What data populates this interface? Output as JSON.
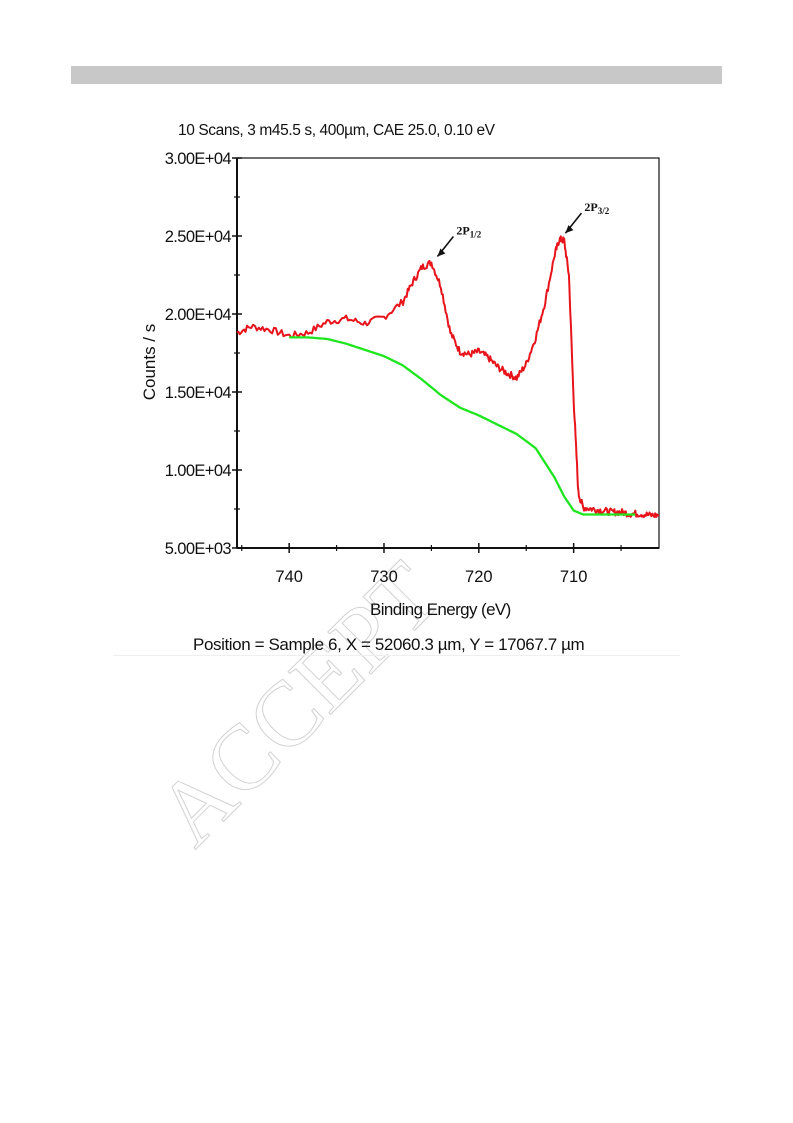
{
  "chart_data": {
    "type": "line",
    "title": "10 Scans,  3 m45.5 s,  400µm,  CAE 25.0,  0.10 eV",
    "xlabel": "Binding Energy (eV)",
    "ylabel": "Counts / s",
    "xlim": [
      745.5,
      701
    ],
    "ylim": [
      5000,
      30000
    ],
    "x_ticks": [
      740,
      730,
      720,
      710
    ],
    "x_tick_labels": [
      "740",
      "730",
      "720",
      "710"
    ],
    "y_ticks": [
      5000,
      10000,
      15000,
      20000,
      25000,
      30000
    ],
    "y_tick_labels": [
      "5.00E+03",
      "1.00E+04",
      "1.50E+04",
      "2.00E+04",
      "2.50E+04",
      "3.00E+04"
    ],
    "grid": false,
    "series": [
      {
        "color": "#e8141b",
        "x": [
          745.5,
          744,
          742,
          740,
          738,
          736,
          734,
          732,
          730,
          728,
          727,
          726,
          725,
          724,
          723,
          722,
          721,
          720,
          719,
          718,
          717,
          716,
          715,
          714,
          713,
          712,
          711.5,
          711,
          710.5,
          710,
          709.5,
          709,
          708,
          707,
          706,
          705,
          704,
          703,
          702,
          701
        ],
        "y": [
          18800,
          19200,
          19000,
          18600,
          18800,
          19500,
          19700,
          19400,
          19800,
          20800,
          22000,
          23000,
          23300,
          21800,
          18800,
          17600,
          17400,
          17600,
          17200,
          16600,
          16200,
          15900,
          16800,
          18500,
          20800,
          23800,
          24800,
          24700,
          22500,
          14500,
          8500,
          7600,
          7500,
          7400,
          7300,
          7300,
          7200,
          7200,
          7100,
          7100
        ]
      },
      {
        "color": "#1ee61e",
        "x": [
          740,
          738,
          736,
          734,
          732,
          730,
          728,
          726,
          724,
          722,
          720,
          718,
          716,
          714,
          712,
          711,
          710,
          709,
          708,
          706,
          704,
          703.5
        ],
        "y": [
          18500,
          18500,
          18400,
          18100,
          17700,
          17300,
          16700,
          15800,
          14800,
          14000,
          13500,
          12900,
          12300,
          11400,
          9500,
          8300,
          7400,
          7150,
          7150,
          7150,
          7150,
          7150
        ]
      }
    ],
    "annotations": [
      {
        "label_main": "2P",
        "label_sub": "1/2",
        "x": 725,
        "y": 23300
      },
      {
        "label_main": "2P",
        "label_sub": "3/2",
        "x": 711.5,
        "y": 24800
      }
    ]
  },
  "footer": {
    "position": "Position = Sample 6, X = 52060.3 µm, Y = 17067.7 µm"
  },
  "watermark": {
    "text": "ACCEPT"
  }
}
